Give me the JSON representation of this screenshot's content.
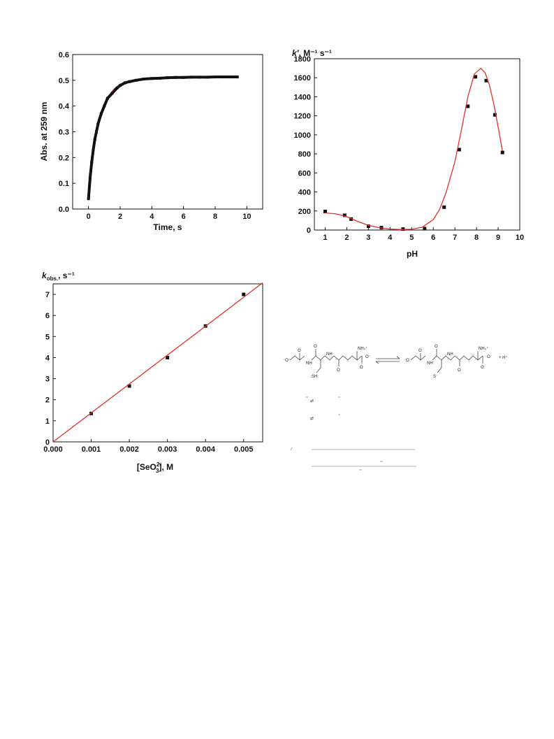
{
  "chart_data": [
    {
      "type": "scatter",
      "xlabel": "Time, s",
      "ylabel": "Abs. at 259 nm",
      "xlim": [
        -1,
        11
      ],
      "ylim": [
        0,
        0.6
      ],
      "xticks": [
        "0",
        "2",
        "4",
        "6",
        "8",
        "10"
      ],
      "yticks": [
        "0.0",
        "0.1",
        "0.2",
        "0.3",
        "0.4",
        "0.5",
        "0.6"
      ],
      "series": [
        {
          "marker": "square",
          "color": "#111111",
          "x": [
            0,
            0.1,
            0.2,
            0.3,
            0.4,
            0.5,
            0.6,
            0.8,
            1.0,
            1.2,
            1.5,
            1.8,
            2.0,
            2.3,
            2.6,
            3.0,
            3.5,
            4.0,
            4.5,
            5.0,
            5.5,
            6.0,
            6.5,
            7.0,
            7.5,
            8.0,
            8.5,
            9.0,
            9.4
          ],
          "y": [
            0.04,
            0.12,
            0.18,
            0.23,
            0.27,
            0.3,
            0.33,
            0.37,
            0.4,
            0.43,
            0.45,
            0.47,
            0.48,
            0.49,
            0.495,
            0.5,
            0.505,
            0.507,
            0.508,
            0.51,
            0.511,
            0.511,
            0.512,
            0.512,
            0.512,
            0.513,
            0.513,
            0.513,
            0.513
          ]
        },
        {
          "marker": "line",
          "color": "#e0302a",
          "x": [
            0,
            0.2,
            0.4,
            0.6,
            0.8,
            1.0,
            1.3,
            1.6,
            2.0,
            2.5,
            3.0,
            3.5,
            4.0,
            5.0,
            6.0,
            7.0,
            8.0,
            9.4
          ],
          "y": [
            0.04,
            0.18,
            0.27,
            0.33,
            0.37,
            0.4,
            0.44,
            0.465,
            0.485,
            0.495,
            0.5,
            0.505,
            0.507,
            0.51,
            0.511,
            0.512,
            0.513,
            0.513
          ]
        }
      ]
    },
    {
      "type": "scatter",
      "title_italic": "k′",
      "title_rest": ", M⁻¹ s⁻¹",
      "xlabel": "pH",
      "xlim": [
        0.5,
        10
      ],
      "ylim": [
        0,
        1800
      ],
      "xticks": [
        "1",
        "2",
        "3",
        "4",
        "5",
        "6",
        "7",
        "8",
        "9",
        "10"
      ],
      "yticks": [
        "0",
        "200",
        "400",
        "600",
        "800",
        "1000",
        "1200",
        "1400",
        "1600",
        "1800"
      ],
      "series": [
        {
          "marker": "square",
          "color": "#111111",
          "x": [
            1.0,
            1.9,
            2.2,
            3.0,
            3.6,
            4.6,
            5.6,
            6.5,
            7.2,
            7.6,
            7.95,
            8.45,
            8.85,
            9.2
          ],
          "y": [
            195,
            155,
            115,
            40,
            25,
            10,
            15,
            240,
            845,
            1300,
            1610,
            1570,
            1210,
            815
          ]
        },
        {
          "marker": "line",
          "color": "#e0302a",
          "x": [
            1.0,
            1.5,
            2.0,
            2.5,
            3.0,
            3.5,
            4.0,
            4.5,
            5.0,
            5.5,
            6.0,
            6.3,
            6.6,
            7.0,
            7.3,
            7.6,
            7.9,
            8.2,
            8.4,
            8.6,
            8.8,
            9.0,
            9.2
          ],
          "y": [
            180,
            170,
            140,
            90,
            50,
            25,
            10,
            5,
            8,
            30,
            110,
            220,
            400,
            720,
            1050,
            1400,
            1640,
            1700,
            1650,
            1520,
            1320,
            1080,
            830
          ]
        }
      ]
    },
    {
      "type": "scatter",
      "ylabel_italic": "k",
      "ylabel_sub": "obs.",
      "ylabel_rest": ", s⁻¹",
      "xlabel_pre": "[SeO",
      "xlabel_sup": "2-",
      "xlabel_sub": "3",
      "xlabel_post": "], M",
      "xlim": [
        0,
        0.0055
      ],
      "ylim": [
        0,
        7.5
      ],
      "xticks": [
        "0.000",
        "0.001",
        "0.002",
        "0.003",
        "0.004",
        "0.005"
      ],
      "yticks": [
        "0",
        "1",
        "2",
        "3",
        "4",
        "5",
        "6",
        "7"
      ],
      "series": [
        {
          "marker": "square",
          "color": "#111111",
          "x": [
            0.001,
            0.002,
            0.003,
            0.004,
            0.005
          ],
          "y": [
            1.35,
            2.65,
            4.0,
            5.5,
            7.0
          ]
        },
        {
          "marker": "line",
          "color": "#e0302a",
          "x": [
            0,
            0.0055
          ],
          "y": [
            0,
            7.55
          ]
        }
      ]
    }
  ],
  "scheme": {
    "left_charge": "⁻O",
    "right_charge": "O⁻",
    "nh3": "NH₃⁺",
    "sh": "SH",
    "s_minus": "S⁻",
    "h_plus": "+ H⁺",
    "nh": "NH",
    "o": "O",
    "eq_arrow": "⇄"
  }
}
